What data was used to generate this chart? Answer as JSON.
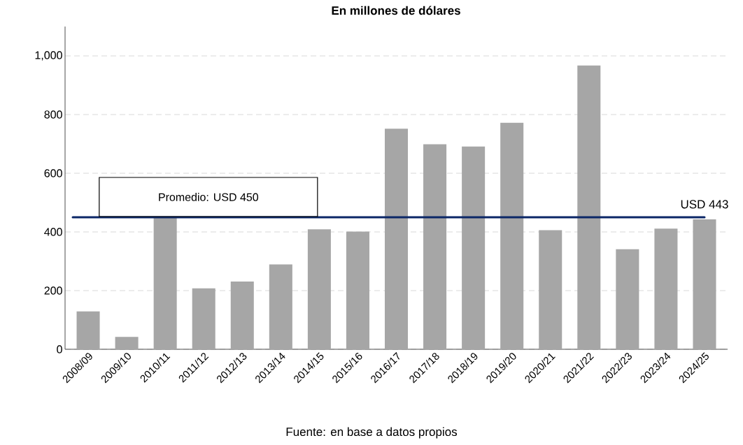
{
  "chart_data": {
    "type": "bar",
    "title": "En millones de dólares",
    "categories": [
      "2008/09",
      "2009/10",
      "2010/11",
      "2011/12",
      "2012/13",
      "2013/14",
      "2014/15",
      "2015/16",
      "2016/17",
      "2017/18",
      "2018/19",
      "2019/20",
      "2020/21",
      "2021/22",
      "2022/23",
      "2023/24",
      "2024/25"
    ],
    "values": [
      129,
      42,
      452,
      208,
      231,
      289,
      409,
      401,
      752,
      699,
      691,
      772,
      406,
      967,
      341,
      411,
      443
    ],
    "color": "#a6a6a6",
    "ylim": [
      0,
      1100
    ],
    "yticks": [
      0,
      200,
      400,
      600,
      800,
      {
        "value": 1000,
        "label": "1,000"
      }
    ],
    "grid": "y",
    "ref_lines": [
      {
        "axis": "y",
        "value": 450,
        "label": "Promedio:  USD 450",
        "color": "#0b2767"
      }
    ],
    "annotations": [
      {
        "text": "USD 443",
        "x": "2024/25",
        "y": 443
      },
      "Fuente: en base a datos propios"
    ]
  }
}
